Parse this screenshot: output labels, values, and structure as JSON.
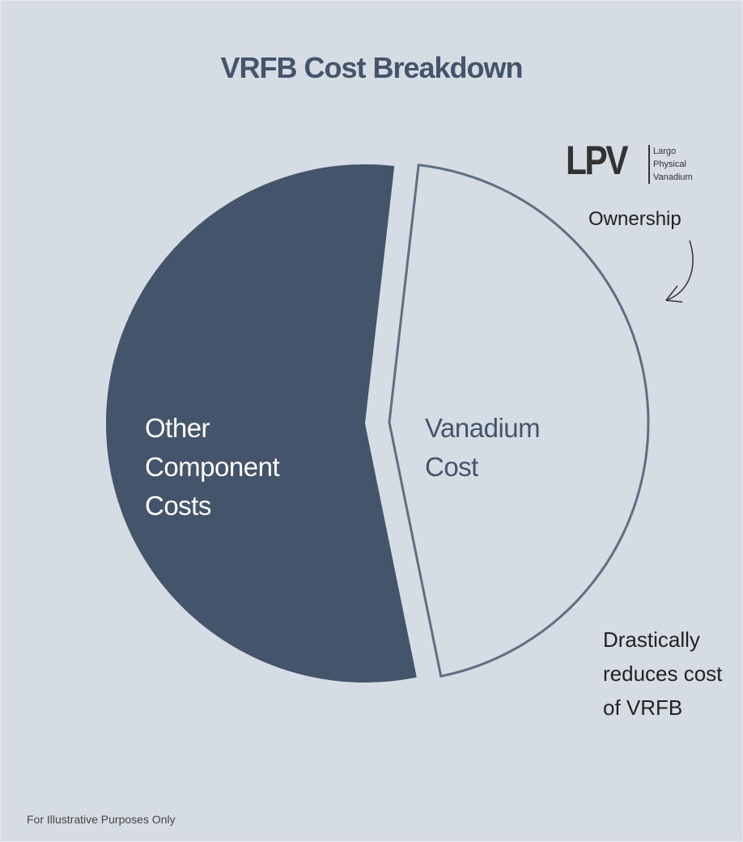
{
  "chart_data": {
    "type": "pie",
    "title": "VRFB Cost Breakdown",
    "categories": [
      "Other Component Costs",
      "Vanadium Cost"
    ],
    "values": [
      55,
      45
    ],
    "colors": [
      "#44546a",
      "#d6dce4"
    ],
    "exploded": [
      false,
      true
    ],
    "logo": {
      "name": "LPV",
      "lines": [
        "Largo",
        "Physical",
        "Vanadium"
      ]
    },
    "annotations": [
      "Ownership",
      "Drastically reduces cost of VRFB"
    ],
    "footnote": "For Illustrative Purposes Only"
  }
}
